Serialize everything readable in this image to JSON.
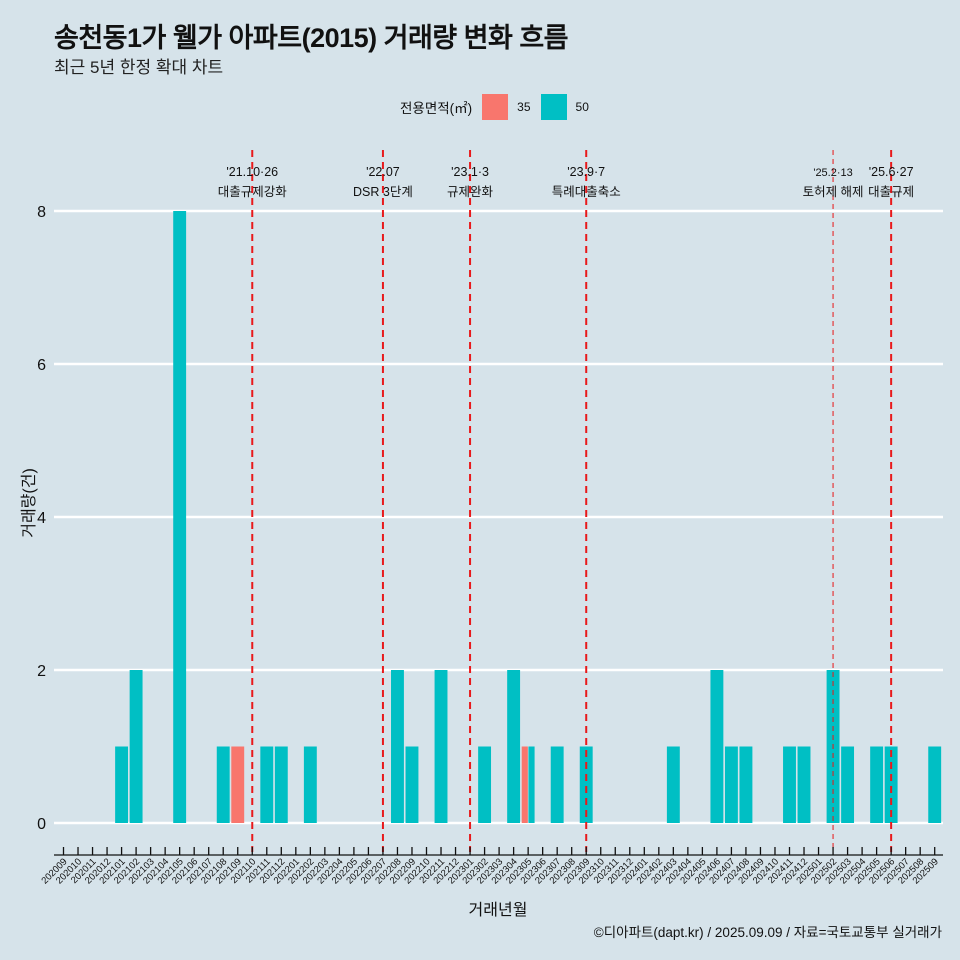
{
  "header": {
    "title": "송천동1가 웰가 아파트(2015) 거래량 변화 흐름",
    "subtitle": "최근 5년 한정 확대 차트"
  },
  "legend": {
    "title": "전용면적(㎡)",
    "items": [
      {
        "label": "35",
        "color": "#f8766d"
      },
      {
        "label": "50",
        "color": "#00bfc4"
      }
    ]
  },
  "footer": "©디아파트(dapt.kr) / 2025.09.09 / 자료=국토교통부 실거래가",
  "chart_data": {
    "type": "bar",
    "title": "송천동1가 웰가 아파트(2015) 거래량 변화 흐름",
    "subtitle": "최근 5년 한정 확대 차트",
    "xlabel": "거래년월",
    "ylabel": "거래량(건)",
    "ylim": [
      0,
      8
    ],
    "yticks": [
      0,
      2,
      4,
      6,
      8
    ],
    "grid": "horizontal major",
    "legend_position": "top",
    "categories": [
      "202009",
      "202010",
      "202011",
      "202012",
      "202101",
      "202102",
      "202103",
      "202104",
      "202105",
      "202106",
      "202107",
      "202108",
      "202109",
      "202110",
      "202111",
      "202112",
      "202201",
      "202202",
      "202203",
      "202204",
      "202205",
      "202206",
      "202207",
      "202208",
      "202209",
      "202210",
      "202211",
      "202212",
      "202301",
      "202302",
      "202303",
      "202304",
      "202305",
      "202306",
      "202307",
      "202308",
      "202309",
      "202310",
      "202311",
      "202312",
      "202401",
      "202402",
      "202403",
      "202404",
      "202405",
      "202406",
      "202407",
      "202408",
      "202409",
      "202410",
      "202411",
      "202412",
      "202501",
      "202502",
      "202503",
      "202504",
      "202505",
      "202506",
      "202507",
      "202508",
      "202509"
    ],
    "series": [
      {
        "name": "35",
        "color": "#f8766d",
        "points": [
          {
            "x": "202109",
            "y": 1
          },
          {
            "x": "202305",
            "y": 1
          }
        ]
      },
      {
        "name": "50",
        "color": "#00bfc4",
        "points": [
          {
            "x": "202101",
            "y": 1
          },
          {
            "x": "202102",
            "y": 2
          },
          {
            "x": "202105",
            "y": 8
          },
          {
            "x": "202108",
            "y": 1
          },
          {
            "x": "202111",
            "y": 1
          },
          {
            "x": "202112",
            "y": 1
          },
          {
            "x": "202202",
            "y": 1
          },
          {
            "x": "202208",
            "y": 2
          },
          {
            "x": "202209",
            "y": 1
          },
          {
            "x": "202211",
            "y": 2
          },
          {
            "x": "202302",
            "y": 1
          },
          {
            "x": "202304",
            "y": 2
          },
          {
            "x": "202305",
            "y": 1
          },
          {
            "x": "202307",
            "y": 1
          },
          {
            "x": "202309",
            "y": 1
          },
          {
            "x": "202403",
            "y": 1
          },
          {
            "x": "202406",
            "y": 2
          },
          {
            "x": "202407",
            "y": 1
          },
          {
            "x": "202408",
            "y": 1
          },
          {
            "x": "202411",
            "y": 1
          },
          {
            "x": "202412",
            "y": 1
          },
          {
            "x": "202502",
            "y": 2
          },
          {
            "x": "202503",
            "y": 1
          },
          {
            "x": "202505",
            "y": 1
          },
          {
            "x": "202506",
            "y": 1
          },
          {
            "x": "202509",
            "y": 1
          }
        ]
      }
    ],
    "annotations": [
      {
        "x": "202110",
        "date": "'21.10·26",
        "label": "대출규제강화",
        "style": "bold"
      },
      {
        "x": "202207",
        "date": "'22.07",
        "label": "DSR 3단계",
        "style": "bold"
      },
      {
        "x": "202301",
        "date": "'23.1·3",
        "label": "규제완화",
        "style": "bold"
      },
      {
        "x": "202309",
        "date": "'23.9·7",
        "label": "특례대출축소",
        "style": "bold"
      },
      {
        "x": "202502",
        "date": "'25.2·13",
        "label": "토허제 해제",
        "style": "thin"
      },
      {
        "x": "202506",
        "date": "'25.6·27",
        "label": "대출규제",
        "style": "bold"
      }
    ],
    "annotation_color": "#e8191b"
  }
}
